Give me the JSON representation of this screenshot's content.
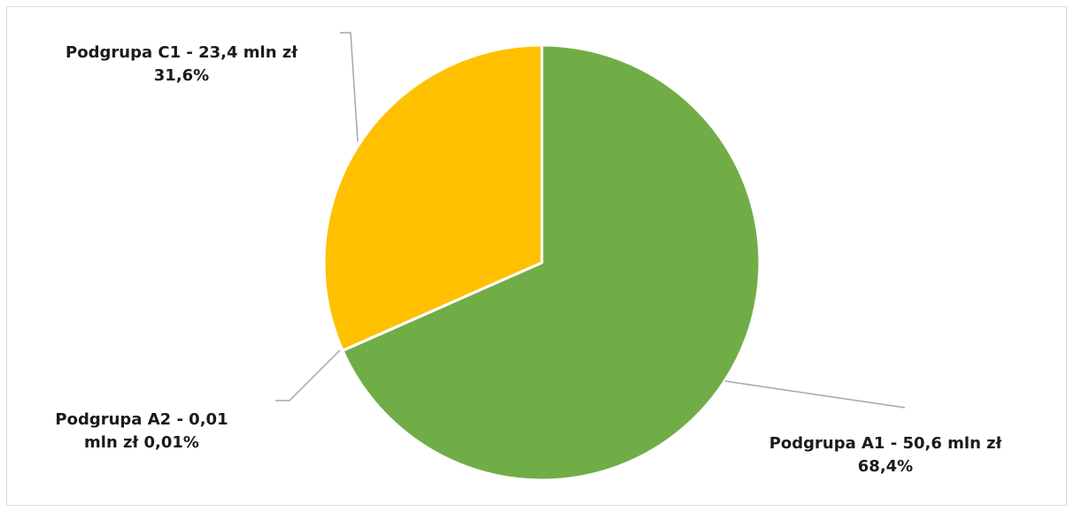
{
  "chart_data": {
    "type": "pie",
    "slices": [
      {
        "name": "Podgrupa A1",
        "value_text": "50,6 mln zł",
        "value": 50.6,
        "percent": 68.4,
        "percent_text": "68,4%",
        "color": "#70ad47"
      },
      {
        "name": "Podgrupa A2",
        "value_text": "0,01 mln zł",
        "value": 0.01,
        "percent": 0.01,
        "percent_text": "0,01%",
        "color": "#4472c4"
      },
      {
        "name": "Podgrupa C1",
        "value_text": "23,4 mln zł",
        "value": 23.4,
        "percent": 31.6,
        "percent_text": "31,6%",
        "color": "#ffc000"
      }
    ],
    "labels": {
      "c1": {
        "line1": "Podgrupa C1 - 23,4 mln zł",
        "line2": "31,6%"
      },
      "a2": {
        "line1": "Podgrupa A2 - 0,01",
        "line2": "mln zł 0,01%"
      },
      "a1": {
        "line1": "Podgrupa A1 - 50,6 mln zł",
        "line2": "68,4%"
      }
    },
    "leader_color": "#a6a6a6"
  }
}
